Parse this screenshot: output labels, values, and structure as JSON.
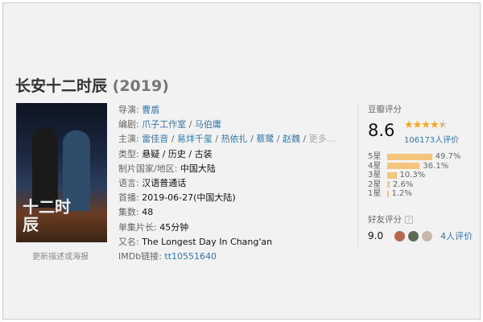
{
  "title": "长安十二时辰",
  "year": "(2019)",
  "poster": {
    "text": "十二时辰",
    "update_link": "更新描述或海报"
  },
  "info": {
    "director": {
      "label": "导演",
      "values": [
        "曹盾"
      ]
    },
    "writer": {
      "label": "编剧",
      "values": [
        "爪子工作室",
        "马伯庸"
      ]
    },
    "cast": {
      "label": "主演",
      "values": [
        "雷佳音",
        "易烊千玺",
        "热依扎",
        "蔡鹭",
        "赵魏"
      ],
      "more": "更多..."
    },
    "genre": {
      "label": "类型",
      "values": [
        "悬疑",
        "历史",
        "古装"
      ]
    },
    "country": {
      "label": "制片国家/地区",
      "value": "中国大陆"
    },
    "language": {
      "label": "语言",
      "value": "汉语普通话"
    },
    "premiere": {
      "label": "首播",
      "value": "2019-06-27(中国大陆)"
    },
    "episodes": {
      "label": "集数",
      "value": "48"
    },
    "runtime": {
      "label": "单集片长",
      "value": "45分钟"
    },
    "aka": {
      "label": "又名",
      "value": "The Longest Day In Chang'an"
    },
    "imdb": {
      "label": "IMDb链接",
      "value": "tt10551640"
    }
  },
  "rating": {
    "label": "豆瓣评分",
    "score": "8.6",
    "stars": 4.5,
    "votes": "106173人评价",
    "breakdown": [
      {
        "label": "5星",
        "pct": "49.7%",
        "value": 49.7
      },
      {
        "label": "4星",
        "pct": "36.1%",
        "value": 36.1
      },
      {
        "label": "3星",
        "pct": "10.3%",
        "value": 10.3
      },
      {
        "label": "2星",
        "pct": "2.6%",
        "value": 2.6
      },
      {
        "label": "1星",
        "pct": "1.2%",
        "value": 1.2
      }
    ]
  },
  "friends": {
    "label": "好友评分",
    "help": "?",
    "score": "9.0",
    "votes": "4人评价"
  },
  "colors": {
    "link": "#3377aa",
    "star": "#f7a41d",
    "bar": "#f4c57c"
  }
}
